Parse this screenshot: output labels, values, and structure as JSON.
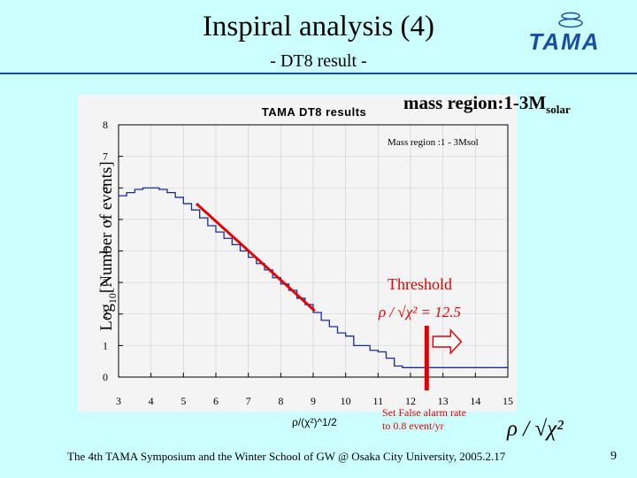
{
  "slide": {
    "title": "Inspiral analysis (4)",
    "subtitle": "- DT8 result -",
    "mass_title": "mass region:1-3M",
    "mass_sub": "solar",
    "threshold_label": "Threshold",
    "false_alarm_line1": "Set False alarm rate",
    "false_alarm_line2": "to 0.8 event/yr",
    "footer": "The 4th TAMA Symposium and the Winter School of GW @ Osaka City University, 2005.2.17",
    "page_number": "9",
    "logo_text": "TAMA"
  },
  "colors": {
    "background": "#ccffff",
    "histogram": "#1a2a9c",
    "fit_line": "#e00000",
    "threshold": "#e00000",
    "title_rule": "#1a4fa0"
  },
  "chart_data": {
    "type": "line",
    "title": "TAMA DT8 results",
    "inset_title": "Mass region :1 - 3Msol",
    "xlabel": "ρ/(χ²)^1/2",
    "ylabel_main": "Log",
    "ylabel_sub": "10",
    "ylabel_rest": "[Number of events]",
    "xlim": [
      3,
      15
    ],
    "ylim": [
      0,
      8
    ],
    "xticks": [
      "3",
      "4",
      "5",
      "6",
      "7",
      "8",
      "9",
      "10",
      "11",
      "12",
      "13",
      "14",
      "15"
    ],
    "yticks": [
      "0",
      "1",
      "2",
      "3",
      "4",
      "5",
      "6",
      "7",
      "8"
    ],
    "histogram_edges": [
      3.0,
      3.25,
      3.5,
      3.75,
      4.0,
      4.25,
      4.5,
      4.75,
      5.0,
      5.25,
      5.5,
      5.75,
      6.0,
      6.25,
      6.5,
      6.75,
      7.0,
      7.25,
      7.5,
      7.75,
      8.0,
      8.25,
      8.5,
      8.75,
      9.0,
      9.25,
      9.5,
      9.75,
      10.0,
      10.25,
      10.5,
      10.75,
      11.0,
      11.25,
      11.5,
      11.75,
      12.0,
      12.25,
      12.5,
      12.75,
      13.0,
      13.25,
      13.5,
      13.75,
      14.0,
      14.25,
      14.5,
      14.75,
      15.0
    ],
    "histogram_values": [
      5.75,
      5.85,
      5.95,
      6.0,
      6.0,
      5.95,
      5.85,
      5.7,
      5.5,
      5.3,
      5.05,
      4.8,
      4.6,
      4.4,
      4.2,
      4.0,
      3.8,
      3.6,
      3.4,
      3.15,
      2.95,
      2.75,
      2.5,
      2.3,
      2.05,
      1.8,
      1.6,
      1.4,
      1.3,
      1.0,
      1.0,
      0.85,
      0.8,
      0.6,
      0.35,
      0.3,
      0.3,
      0.3,
      0.3,
      0.3,
      0.3,
      0.3,
      0.3,
      0.3,
      0.3,
      0.3,
      0.3,
      0.3
    ],
    "fit_line": {
      "x": [
        5.4,
        9.05
      ],
      "y": [
        5.5,
        2.1
      ]
    },
    "threshold_x": 12.5,
    "threshold_formula": "ρ / √χ² = 12.5",
    "x_formula_big": "ρ / √χ²"
  }
}
